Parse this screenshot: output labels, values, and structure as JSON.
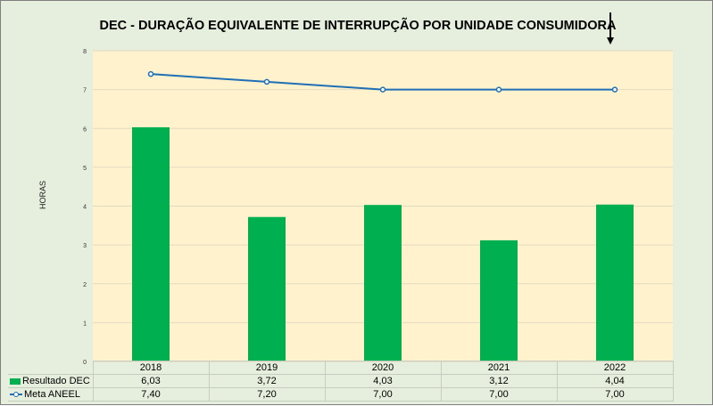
{
  "chart_data": {
    "type": "bar",
    "title": "DEC - DURAÇÃO EQUIVALENTE DE INTERRUPÇÃO POR UNIDADE CONSUMIDORA",
    "xlabel": "",
    "ylabel": "HORAS",
    "ylim": [
      0,
      8
    ],
    "yticks": [
      "0",
      "1",
      "2",
      "3",
      "4",
      "5",
      "6",
      "7",
      "8"
    ],
    "categories": [
      "2018",
      "2019",
      "2020",
      "2021",
      "2022"
    ],
    "grid": true,
    "legend": "data-table",
    "series": [
      {
        "name": "Resultado DEC",
        "type": "bar",
        "color": "#00b050",
        "values": [
          6.03,
          3.72,
          4.03,
          3.12,
          4.04
        ],
        "labels": [
          "6,03",
          "3,72",
          "4,03",
          "3,12",
          "4,04"
        ]
      },
      {
        "name": "Meta ANEEL",
        "type": "line",
        "color": "#1f6fb5",
        "marker": "circle",
        "values": [
          7.4,
          7.2,
          7.0,
          7.0,
          7.0
        ],
        "labels": [
          "7,40",
          "7,20",
          "7,00",
          "7,00",
          "7,00"
        ]
      }
    ],
    "annotations": [
      {
        "type": "arrow",
        "direction": "down",
        "target_category": "2022"
      }
    ]
  },
  "colors": {
    "background": "#e6efdd",
    "plot_area": "#fff2cc",
    "gridline": "#e2dac0"
  }
}
